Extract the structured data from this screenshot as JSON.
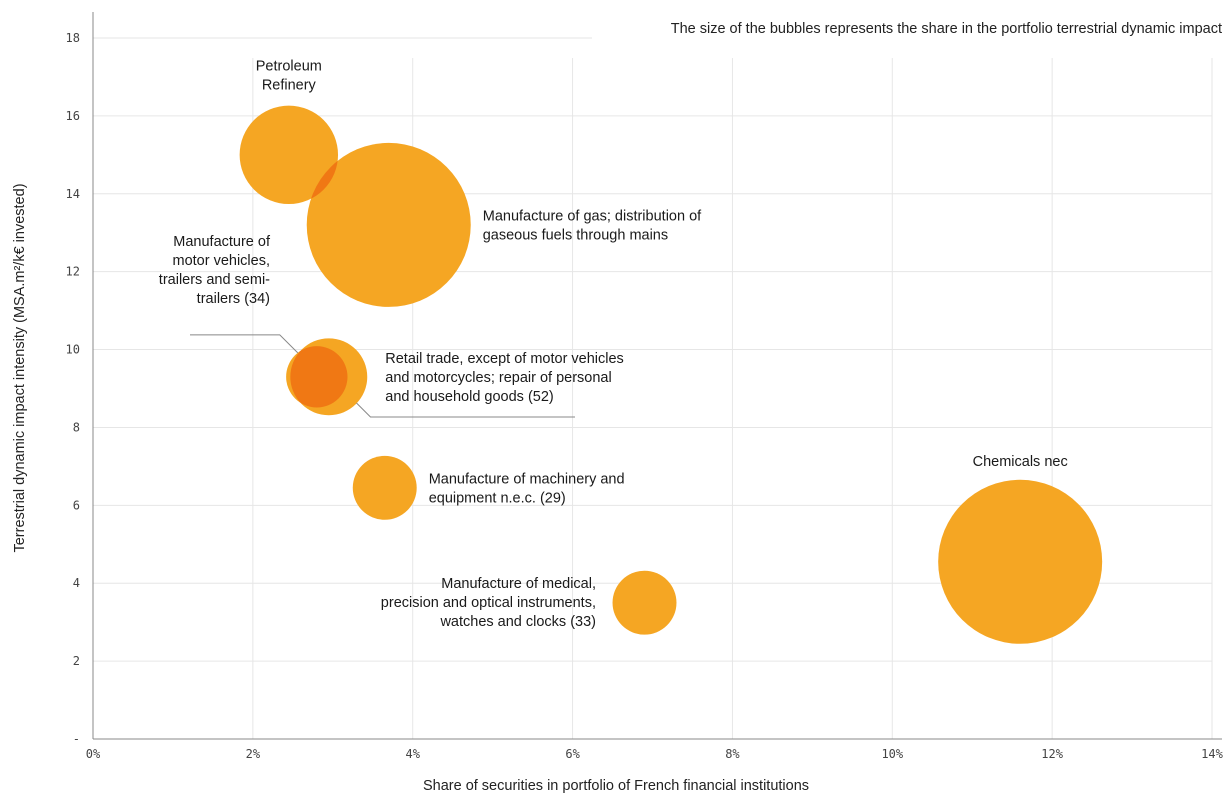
{
  "chart_data": {
    "type": "scatter",
    "subtype": "bubble",
    "note": "The size of the bubbles represents the share in the portfolio terrestrial dynamic impact",
    "xlabel": "Share of securities in portfolio of French financial institutions",
    "ylabel": "Terrestrial dynamic impact intensity (MSA.m²/k€ invested)",
    "xlim": [
      0,
      14
    ],
    "ylim": [
      0,
      18
    ],
    "x_ticks": [
      "0%",
      "2%",
      "4%",
      "6%",
      "8%",
      "10%",
      "12%",
      "14%"
    ],
    "y_ticks": [
      "-",
      "2",
      "4",
      "6",
      "8",
      "10",
      "12",
      "14",
      "16",
      "18"
    ],
    "grid": true,
    "bubble_color": "#f5a623",
    "overlap_color": "#f07814",
    "points": [
      {
        "label": "Petroleum\nRefinery",
        "x": 2.45,
        "y": 15.0,
        "size": 0.9
      },
      {
        "label": "Manufacture of gas; distribution of\ngaseous fuels through mains",
        "x": 3.7,
        "y": 13.2,
        "size": 2.5
      },
      {
        "label": "Manufacture of\nmotor vehicles,\ntrailers and semi-\ntrailers (34)",
        "x": 2.8,
        "y": 9.3,
        "size": 0.35
      },
      {
        "label": "Retail trade, except of motor vehicles\nand motorcycles; repair of personal\nand household goods (52)",
        "x": 2.95,
        "y": 9.3,
        "size": 0.55
      },
      {
        "label": "Manufacture of machinery and\nequipment n.e.c. (29)",
        "x": 3.65,
        "y": 6.45,
        "size": 0.38
      },
      {
        "label": "Manufacture of medical,\nprecision and optical instruments,\nwatches and clocks (33)",
        "x": 6.9,
        "y": 3.5,
        "size": 0.38
      },
      {
        "label": "Chemicals nec",
        "x": 11.6,
        "y": 4.55,
        "size": 2.5
      }
    ]
  }
}
